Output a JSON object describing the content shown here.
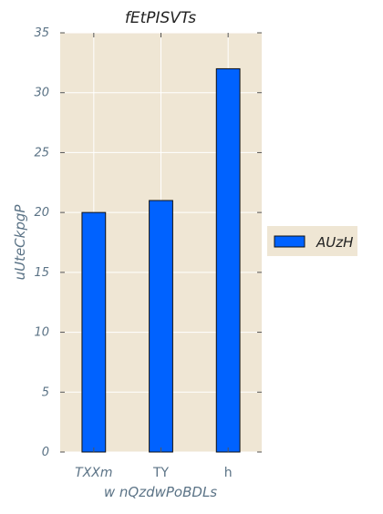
{
  "chart_data": {
    "type": "bar",
    "title": "fEtPISVTs",
    "xlabel": "w nQzdwPoBDLs",
    "ylabel": "uUteCkpgP",
    "categories": [
      "TXXm",
      "TY",
      "h"
    ],
    "series": [
      {
        "name": "AUzH",
        "values": [
          20,
          21,
          32
        ]
      }
    ],
    "ylim": [
      0,
      35
    ],
    "yticks": [
      0,
      5,
      10,
      15,
      20,
      25,
      30,
      35
    ],
    "grid": true,
    "legend_position": "right",
    "colors": {
      "background": "#efe6d4",
      "bar_fill": "#0062ff",
      "bar_edge": "#111111",
      "grid": "#ffffff",
      "tick": "#555555"
    }
  }
}
